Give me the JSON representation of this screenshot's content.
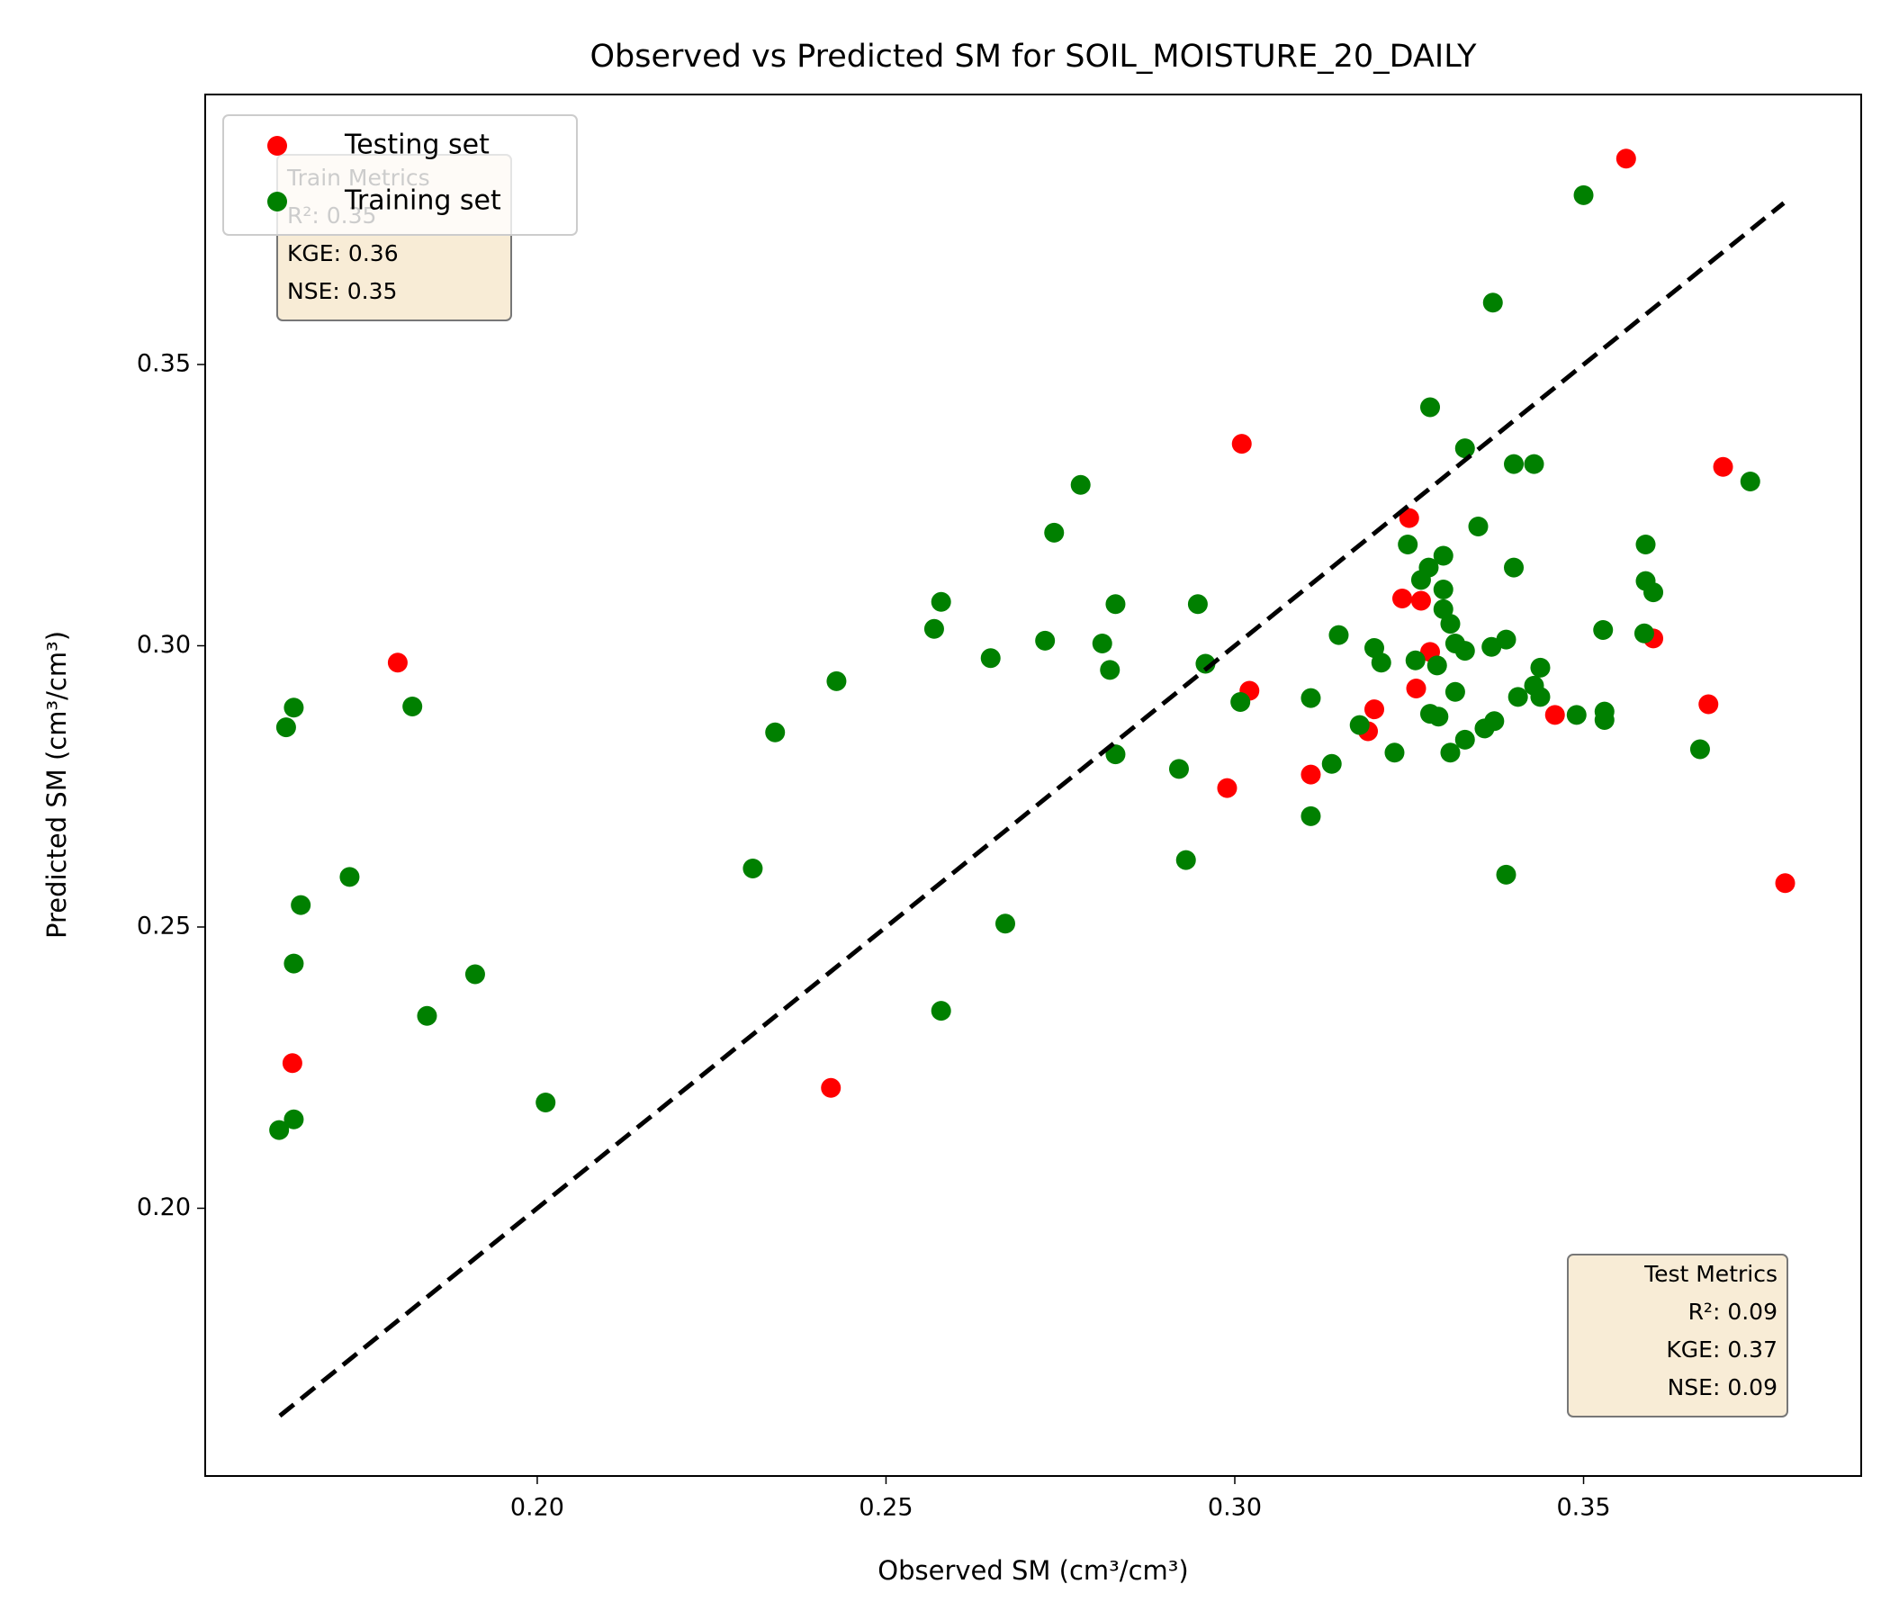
{
  "chart_data": {
    "type": "scatter",
    "title": "Observed vs Predicted SM for SOIL_MOISTURE_20_DAILY",
    "xlabel": "Observed SM (cm³/cm³)",
    "ylabel": "Predicted SM (cm³/cm³)",
    "xlim": [
      0.1524,
      0.3898
    ],
    "ylim": [
      0.1524,
      0.398
    ],
    "xticks": [
      {
        "value": 0.2,
        "label": "0.20"
      },
      {
        "value": 0.25,
        "label": "0.25"
      },
      {
        "value": 0.3,
        "label": "0.30"
      },
      {
        "value": 0.35,
        "label": "0.35"
      }
    ],
    "yticks": [
      {
        "value": 0.2,
        "label": "0.20"
      },
      {
        "value": 0.25,
        "label": "0.25"
      },
      {
        "value": 0.3,
        "label": "0.30"
      },
      {
        "value": 0.35,
        "label": "0.35"
      }
    ],
    "grid": false,
    "legend": "upper left",
    "diagonal": [
      0.1631,
      0.3787
    ],
    "series": [
      {
        "name": "Testing set",
        "color": "#ff0000",
        "x": [
          0.3561,
          0.301,
          0.37,
          0.325,
          0.18,
          0.324,
          0.3267,
          0.328,
          0.36,
          0.3021,
          0.326,
          0.3679,
          0.32,
          0.3459,
          0.3191,
          0.3109,
          0.2989,
          0.3789,
          0.1649,
          0.2421
        ],
        "values": [
          0.3866,
          0.3359,
          0.3318,
          0.3227,
          0.297,
          0.3084,
          0.308,
          0.2989,
          0.3013,
          0.292,
          0.2924,
          0.2896,
          0.2887,
          0.2877,
          0.2848,
          0.2771,
          0.2747,
          0.2578,
          0.2258,
          0.2214
        ]
      },
      {
        "name": "Training set",
        "color": "#008000",
        "x": [
          0.35,
          0.337,
          0.328,
          0.333,
          0.34,
          0.3429,
          0.3739,
          0.2779,
          0.2741,
          0.3349,
          0.3248,
          0.3589,
          0.3299,
          0.3278,
          0.34,
          0.3267,
          0.3589,
          0.3299,
          0.36,
          0.2579,
          0.2829,
          0.2947,
          0.3299,
          0.3309,
          0.2569,
          0.3528,
          0.3587,
          0.3149,
          0.2728,
          0.281,
          0.3389,
          0.3316,
          0.3368,
          0.32,
          0.333,
          0.265,
          0.3259,
          0.321,
          0.2958,
          0.329,
          0.3438,
          0.2821,
          0.2429,
          0.3429,
          0.3316,
          0.3438,
          0.3406,
          0.3109,
          0.3008,
          0.1651,
          0.1821,
          0.328,
          0.353,
          0.3292,
          0.349,
          0.3372,
          0.353,
          0.3358,
          0.3179,
          0.164,
          0.2341,
          0.333,
          0.3667,
          0.2829,
          0.3229,
          0.3309,
          0.3139,
          0.292,
          0.3109,
          0.293,
          0.2309,
          0.1731,
          0.3389,
          0.1661,
          0.2671,
          0.1651,
          0.1911,
          0.1842,
          0.2579,
          0.2012,
          0.1651,
          0.163
        ],
        "values": [
          0.3801,
          0.361,
          0.3424,
          0.3351,
          0.3323,
          0.3323,
          0.3292,
          0.3286,
          0.3201,
          0.3212,
          0.318,
          0.318,
          0.316,
          0.3139,
          0.3139,
          0.3117,
          0.3115,
          0.31,
          0.3095,
          0.3078,
          0.3074,
          0.3074,
          0.3065,
          0.3039,
          0.303,
          0.3028,
          0.3022,
          0.3019,
          0.3009,
          0.3004,
          0.3011,
          0.3004,
          0.2998,
          0.2996,
          0.2991,
          0.2978,
          0.2974,
          0.297,
          0.2968,
          0.2965,
          0.2961,
          0.2957,
          0.2937,
          0.2929,
          0.2918,
          0.2909,
          0.2909,
          0.2907,
          0.29,
          0.289,
          0.2892,
          0.2879,
          0.2883,
          0.2874,
          0.2877,
          0.2866,
          0.2868,
          0.2853,
          0.2859,
          0.2855,
          0.2846,
          0.2833,
          0.2816,
          0.2807,
          0.281,
          0.281,
          0.279,
          0.2781,
          0.2697,
          0.2619,
          0.2604,
          0.2589,
          0.2593,
          0.2539,
          0.2506,
          0.2435,
          0.2416,
          0.2342,
          0.2351,
          0.2188,
          0.2158,
          0.2139
        ]
      }
    ],
    "train_metrics": [
      "Train Metrics",
      "R²: 0.35",
      "KGE: 0.36",
      "NSE: 0.35"
    ],
    "test_metrics": [
      "Test Metrics",
      "R²: 0.09",
      "KGE: 0.37",
      "NSE: 0.09"
    ]
  }
}
